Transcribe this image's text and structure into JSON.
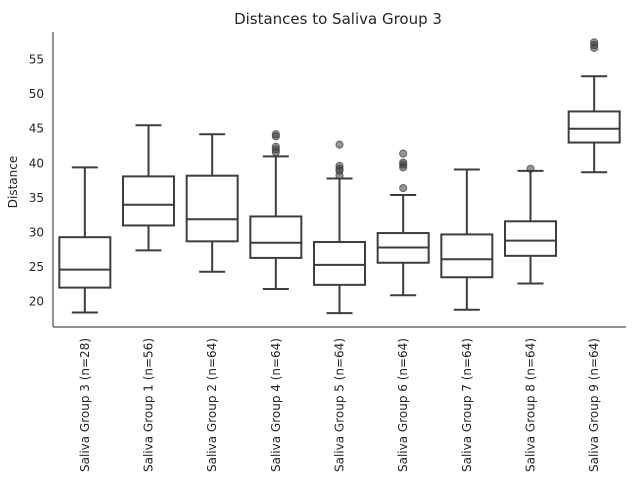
{
  "chart_data": {
    "type": "box",
    "title": "Distances to Saliva Group 3",
    "xlabel": "",
    "ylabel": "Distance",
    "ylim": [
      16.3,
      59.0
    ],
    "yticks": [
      20,
      25,
      30,
      35,
      40,
      45,
      50,
      55
    ],
    "grid": false,
    "categories": [
      "Saliva Group 3 (n=28)",
      "Saliva Group 1 (n=56)",
      "Saliva Group 2 (n=64)",
      "Saliva Group 4 (n=64)",
      "Saliva Group 5 (n=64)",
      "Saliva Group 6 (n=64)",
      "Saliva Group 7 (n=64)",
      "Saliva Group 8 (n=64)",
      "Saliva Group 9 (n=64)"
    ],
    "boxes": [
      {
        "whisker_low": 18.4,
        "q1": 22.0,
        "median": 24.6,
        "q3": 29.3,
        "whisker_high": 39.4,
        "fliers": []
      },
      {
        "whisker_low": 27.4,
        "q1": 31.0,
        "median": 34.0,
        "q3": 38.1,
        "whisker_high": 45.5,
        "fliers": []
      },
      {
        "whisker_low": 24.3,
        "q1": 28.7,
        "median": 31.9,
        "q3": 38.2,
        "whisker_high": 44.2,
        "fliers": []
      },
      {
        "whisker_low": 21.8,
        "q1": 26.3,
        "median": 28.5,
        "q3": 32.3,
        "whisker_high": 41.0,
        "fliers": [
          41.6,
          42.0,
          42.4,
          43.9,
          44.2
        ]
      },
      {
        "whisker_low": 18.3,
        "q1": 22.4,
        "median": 25.3,
        "q3": 28.6,
        "whisker_high": 37.8,
        "fliers": [
          38.2,
          38.9,
          39.2,
          39.6,
          42.7
        ]
      },
      {
        "whisker_low": 20.9,
        "q1": 25.6,
        "median": 27.8,
        "q3": 29.9,
        "whisker_high": 35.4,
        "fliers": [
          36.4,
          39.4,
          39.8,
          40.1,
          41.4
        ]
      },
      {
        "whisker_low": 18.8,
        "q1": 23.5,
        "median": 26.1,
        "q3": 29.7,
        "whisker_high": 39.1,
        "fliers": []
      },
      {
        "whisker_low": 22.6,
        "q1": 26.6,
        "median": 28.8,
        "q3": 31.6,
        "whisker_high": 38.9,
        "fliers": [
          39.2
        ]
      },
      {
        "whisker_low": 38.7,
        "q1": 43.0,
        "median": 45.0,
        "q3": 47.5,
        "whisker_high": 52.6,
        "fliers": [
          56.7,
          57.1,
          57.5
        ]
      }
    ]
  }
}
